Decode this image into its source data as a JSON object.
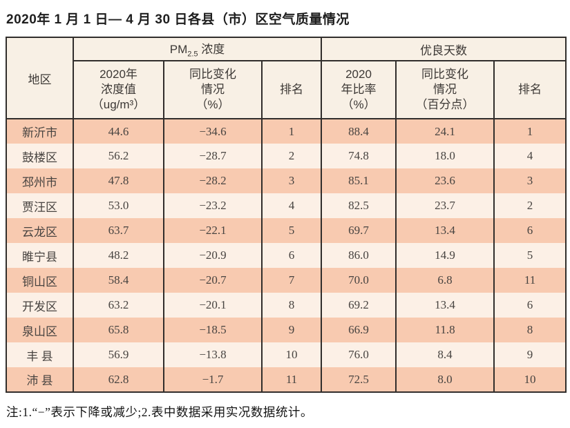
{
  "page": {
    "title": "2020年 1 月 1 日— 4 月 30 日各县（市）区空气质量情况",
    "footnote": "注:1.“−”表示下降或减少;2.表中数据采用实况数据统计。"
  },
  "colors": {
    "row_peach": "#f8cab0",
    "row_cream": "#fcf0e6",
    "header_bg": "#f8f0e5",
    "table_border": "#302d2b",
    "text": "#474340"
  },
  "table": {
    "header": {
      "region": "地区",
      "pm_group": {
        "prefix": "PM",
        "sub": "2.5",
        "suffix": " 浓度"
      },
      "good_group": "优良天数",
      "sub_cols": [
        {
          "lines": [
            "2020年",
            "浓度值",
            "（ug/m³）"
          ]
        },
        {
          "lines": [
            "同比变化",
            "情况",
            "（%）"
          ]
        },
        {
          "lines": [
            "排名"
          ]
        },
        {
          "lines": [
            "2020",
            "年比率",
            "（%）"
          ]
        },
        {
          "lines": [
            "同比变化",
            "情况",
            "（百分点）"
          ]
        },
        {
          "lines": [
            "排名"
          ]
        }
      ]
    },
    "rows": [
      {
        "region": "新沂市",
        "pm_value": "44.6",
        "pm_change": "−34.6",
        "pm_rank": "1",
        "ratio": "88.4",
        "ratio_change": "24.1",
        "ratio_rank": "1"
      },
      {
        "region": "鼓楼区",
        "pm_value": "56.2",
        "pm_change": "−28.7",
        "pm_rank": "2",
        "ratio": "74.8",
        "ratio_change": "18.0",
        "ratio_rank": "4"
      },
      {
        "region": "邳州市",
        "pm_value": "47.8",
        "pm_change": "−28.2",
        "pm_rank": "3",
        "ratio": "85.1",
        "ratio_change": "23.6",
        "ratio_rank": "3"
      },
      {
        "region": "贾汪区",
        "pm_value": "53.0",
        "pm_change": "−23.2",
        "pm_rank": "4",
        "ratio": "82.5",
        "ratio_change": "23.7",
        "ratio_rank": "2"
      },
      {
        "region": "云龙区",
        "pm_value": "63.7",
        "pm_change": "−22.1",
        "pm_rank": "5",
        "ratio": "69.7",
        "ratio_change": "13.4",
        "ratio_rank": "6"
      },
      {
        "region": "睢宁县",
        "pm_value": "48.2",
        "pm_change": "−20.9",
        "pm_rank": "6",
        "ratio": "86.0",
        "ratio_change": "14.9",
        "ratio_rank": "5"
      },
      {
        "region": "铜山区",
        "pm_value": "58.4",
        "pm_change": "−20.7",
        "pm_rank": "7",
        "ratio": "70.0",
        "ratio_change": "6.8",
        "ratio_rank": "11"
      },
      {
        "region": "开发区",
        "pm_value": "63.2",
        "pm_change": "−20.1",
        "pm_rank": "8",
        "ratio": "69.2",
        "ratio_change": "13.4",
        "ratio_rank": "6"
      },
      {
        "region": "泉山区",
        "pm_value": "65.8",
        "pm_change": "−18.5",
        "pm_rank": "9",
        "ratio": "66.9",
        "ratio_change": "11.8",
        "ratio_rank": "8"
      },
      {
        "region": "丰 县",
        "pm_value": "56.9",
        "pm_change": "−13.8",
        "pm_rank": "10",
        "ratio": "76.0",
        "ratio_change": "8.4",
        "ratio_rank": "9"
      },
      {
        "region": "沛 县",
        "pm_value": "62.8",
        "pm_change": "−1.7",
        "pm_rank": "11",
        "ratio": "72.5",
        "ratio_change": "8.0",
        "ratio_rank": "10"
      }
    ]
  },
  "chart_data": {
    "type": "table",
    "title": "2020年 1 月 1 日— 4 月 30 日各县（市）区空气质量情况",
    "column_groups": [
      "PM2.5 浓度",
      "优良天数"
    ],
    "columns": [
      "地区",
      "2020年浓度值（ug/m³）",
      "同比变化情况（%）",
      "排名",
      "2020年比率（%）",
      "同比变化情况（百分点）",
      "排名"
    ],
    "rows": [
      [
        "新沂市",
        44.6,
        -34.6,
        1,
        88.4,
        24.1,
        1
      ],
      [
        "鼓楼区",
        56.2,
        -28.7,
        2,
        74.8,
        18.0,
        4
      ],
      [
        "邳州市",
        47.8,
        -28.2,
        3,
        85.1,
        23.6,
        3
      ],
      [
        "贾汪区",
        53.0,
        -23.2,
        4,
        82.5,
        23.7,
        2
      ],
      [
        "云龙区",
        63.7,
        -22.1,
        5,
        69.7,
        13.4,
        6
      ],
      [
        "睢宁县",
        48.2,
        -20.9,
        6,
        86.0,
        14.9,
        5
      ],
      [
        "铜山区",
        58.4,
        -20.7,
        7,
        70.0,
        6.8,
        11
      ],
      [
        "开发区",
        63.2,
        -20.1,
        8,
        69.2,
        13.4,
        6
      ],
      [
        "泉山区",
        65.8,
        -18.5,
        9,
        66.9,
        11.8,
        8
      ],
      [
        "丰县",
        56.9,
        -13.8,
        10,
        76.0,
        8.4,
        9
      ],
      [
        "沛县",
        62.8,
        -1.7,
        11,
        72.5,
        8.0,
        10
      ]
    ],
    "footnote": "注:1.“−”表示下降或减少;2.表中数据采用实况数据统计。"
  }
}
